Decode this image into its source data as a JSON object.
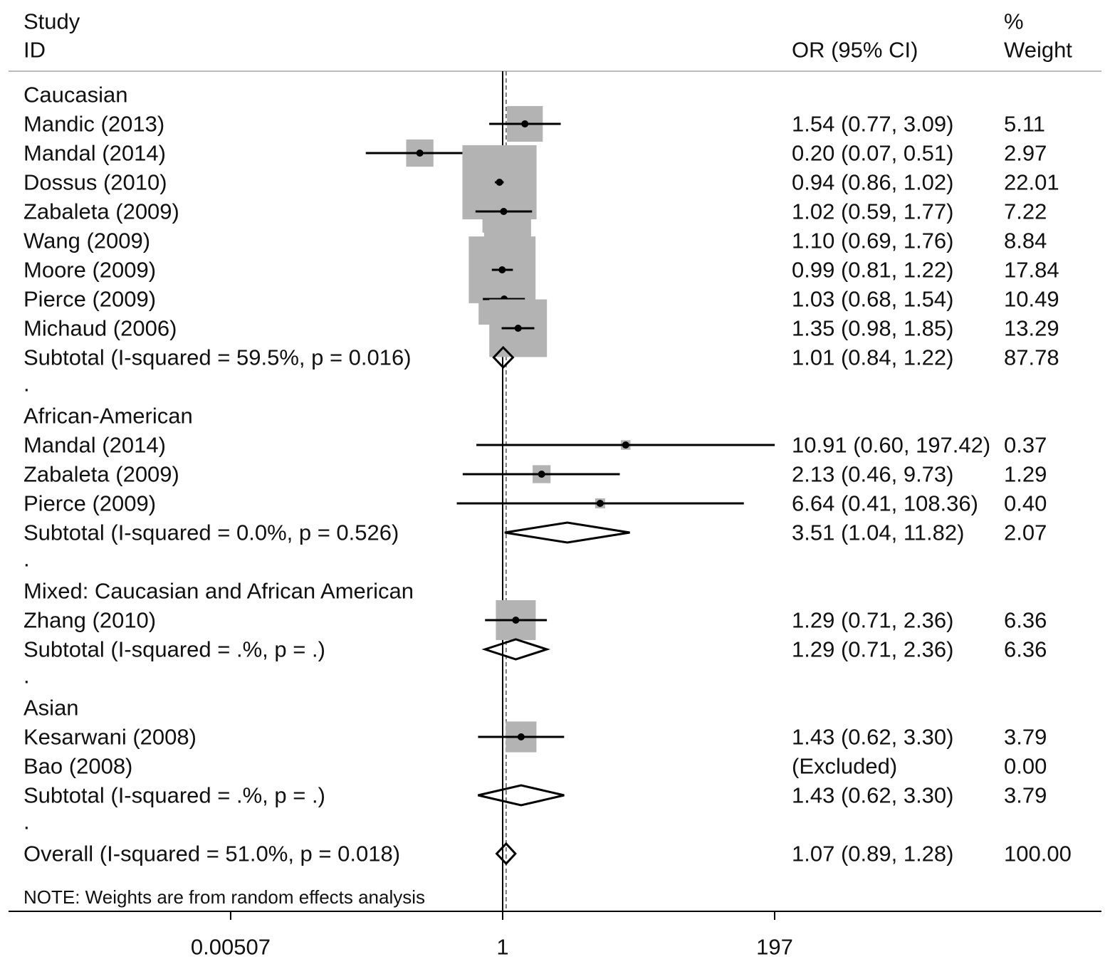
{
  "chart_data": {
    "type": "forest",
    "scale": "log",
    "headers": {
      "study_line1": "Study",
      "study_line2": "ID",
      "or": "OR (95% CI)",
      "weight_line1": "%",
      "weight_line2": "Weight"
    },
    "ticks": [
      {
        "value": 0.00507,
        "label": "0.00507"
      },
      {
        "value": 1,
        "label": "1"
      },
      {
        "value": 197,
        "label": "197"
      }
    ],
    "null_value": 1,
    "overall_line_value": 1.07,
    "note": "NOTE: Weights are from random effects analysis",
    "spacer_text": ".",
    "rows": [
      {
        "kind": "group",
        "label": "Caucasian"
      },
      {
        "kind": "study",
        "label": "Mandic (2013)",
        "or": 1.54,
        "lo": 0.77,
        "hi": 3.09,
        "ci_text": "1.54 (0.77, 3.09)",
        "weight": "5.11"
      },
      {
        "kind": "study",
        "label": "Mandal (2014)",
        "or": 0.2,
        "lo": 0.07,
        "hi": 0.51,
        "ci_text": "0.20 (0.07, 0.51)",
        "weight": "2.97"
      },
      {
        "kind": "study",
        "label": "Dossus (2010)",
        "or": 0.94,
        "lo": 0.86,
        "hi": 1.02,
        "ci_text": "0.94 (0.86, 1.02)",
        "weight": "22.01"
      },
      {
        "kind": "study",
        "label": "Zabaleta (2009)",
        "or": 1.02,
        "lo": 0.59,
        "hi": 1.77,
        "ci_text": "1.02 (0.59, 1.77)",
        "weight": "7.22"
      },
      {
        "kind": "study",
        "label": "Wang (2009)",
        "or": 1.1,
        "lo": 0.69,
        "hi": 1.76,
        "ci_text": "1.10 (0.69, 1.76)",
        "weight": "8.84"
      },
      {
        "kind": "study",
        "label": "Moore (2009)",
        "or": 0.99,
        "lo": 0.81,
        "hi": 1.22,
        "ci_text": "0.99 (0.81, 1.22)",
        "weight": "17.84"
      },
      {
        "kind": "study",
        "label": "Pierce (2009)",
        "or": 1.03,
        "lo": 0.68,
        "hi": 1.54,
        "ci_text": "1.03 (0.68, 1.54)",
        "weight": "10.49"
      },
      {
        "kind": "study",
        "label": "Michaud (2006)",
        "or": 1.35,
        "lo": 0.98,
        "hi": 1.85,
        "ci_text": "1.35 (0.98, 1.85)",
        "weight": "13.29"
      },
      {
        "kind": "subtotal",
        "label": "Subtotal  (I-squared = 59.5%, p = 0.016)",
        "or": 1.01,
        "lo": 0.84,
        "hi": 1.22,
        "ci_text": "1.01 (0.84, 1.22)",
        "weight": "87.78"
      },
      {
        "kind": "spacer"
      },
      {
        "kind": "group",
        "label": "African-American"
      },
      {
        "kind": "study",
        "label": "Mandal (2014)",
        "or": 10.91,
        "lo": 0.6,
        "hi": 197.42,
        "ci_text": "10.91 (0.60, 197.42)",
        "weight": "0.37"
      },
      {
        "kind": "study",
        "label": "Zabaleta (2009)",
        "or": 2.13,
        "lo": 0.46,
        "hi": 9.73,
        "ci_text": "2.13 (0.46, 9.73)",
        "weight": "1.29"
      },
      {
        "kind": "study",
        "label": "Pierce (2009)",
        "or": 6.64,
        "lo": 0.41,
        "hi": 108.36,
        "ci_text": "6.64 (0.41, 108.36)",
        "weight": "0.40"
      },
      {
        "kind": "subtotal",
        "label": "Subtotal  (I-squared = 0.0%, p = 0.526)",
        "or": 3.51,
        "lo": 1.04,
        "hi": 11.82,
        "ci_text": "3.51 (1.04, 11.82)",
        "weight": "2.07"
      },
      {
        "kind": "spacer"
      },
      {
        "kind": "group",
        "label": "Mixed: Caucasian and African American"
      },
      {
        "kind": "study",
        "label": "Zhang (2010)",
        "or": 1.29,
        "lo": 0.71,
        "hi": 2.36,
        "ci_text": "1.29 (0.71, 2.36)",
        "weight": "6.36"
      },
      {
        "kind": "subtotal",
        "label": "Subtotal  (I-squared = .%, p = .)",
        "or": 1.29,
        "lo": 0.71,
        "hi": 2.36,
        "ci_text": "1.29 (0.71, 2.36)",
        "weight": "6.36"
      },
      {
        "kind": "spacer"
      },
      {
        "kind": "group",
        "label": "Asian"
      },
      {
        "kind": "study",
        "label": "Kesarwani (2008)",
        "or": 1.43,
        "lo": 0.62,
        "hi": 3.3,
        "ci_text": "1.43 (0.62, 3.30)",
        "weight": "3.79"
      },
      {
        "kind": "study",
        "label": "Bao (2008)",
        "ci_text": "(Excluded)",
        "weight": "0.00"
      },
      {
        "kind": "subtotal",
        "label": "Subtotal  (I-squared = .%, p = .)",
        "or": 1.43,
        "lo": 0.62,
        "hi": 3.3,
        "ci_text": "1.43 (0.62, 3.30)",
        "weight": "3.79"
      },
      {
        "kind": "spacer"
      },
      {
        "kind": "overall",
        "label": "Overall  (I-squared = 51.0%, p = 0.018)",
        "or": 1.07,
        "lo": 0.89,
        "hi": 1.28,
        "ci_text": "1.07 (0.89, 1.28)",
        "weight": "100.00"
      }
    ],
    "colors": {
      "box": "#b3b3b3",
      "line": "#000000"
    }
  }
}
